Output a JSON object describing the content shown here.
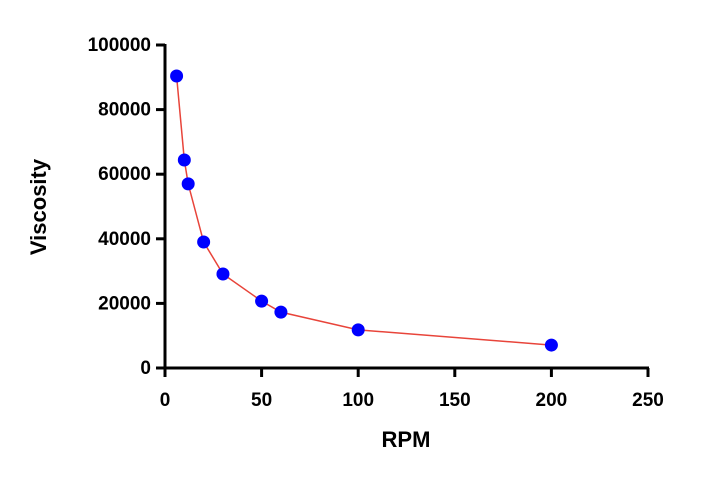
{
  "chart_data": {
    "type": "line",
    "x_label": "RPM",
    "y_label": "Viscosity",
    "x": [
      6,
      10,
      12,
      20,
      30,
      50,
      60,
      100,
      200
    ],
    "values": [
      90400,
      64400,
      57000,
      39000,
      29100,
      20700,
      17300,
      11800,
      7100
    ],
    "line_color": "#e8443a",
    "marker_color": "#0000ff",
    "xlim": [
      0,
      250
    ],
    "xticks": [
      0,
      50,
      100,
      150,
      200,
      250
    ],
    "ylim": [
      0,
      100000
    ],
    "yticks": [
      0,
      20000,
      40000,
      60000,
      80000,
      100000
    ],
    "grid": false
  }
}
